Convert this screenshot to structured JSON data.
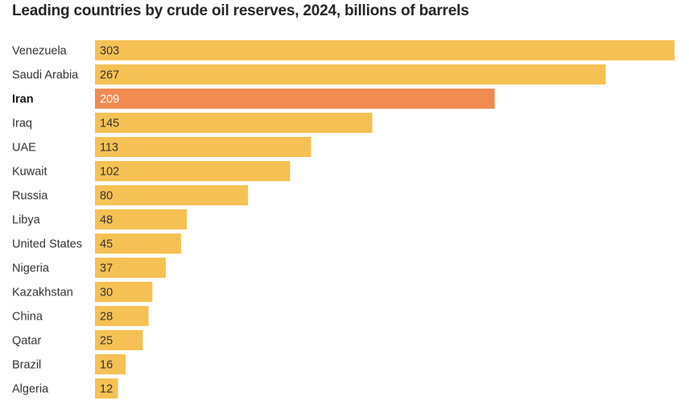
{
  "chart_data": {
    "type": "bar",
    "orientation": "horizontal",
    "title": "Leading countries by crude oil reserves, 2024, billions of barrels",
    "xlabel": "",
    "ylabel": "",
    "categories": [
      "Venezuela",
      "Saudi Arabia",
      "Iran",
      "Iraq",
      "UAE",
      "Kuwait",
      "Russia",
      "Libya",
      "United States",
      "Nigeria",
      "Kazakhstan",
      "China",
      "Qatar",
      "Brazil",
      "Algeria"
    ],
    "values": [
      303,
      267,
      209,
      145,
      113,
      102,
      80,
      48,
      45,
      37,
      30,
      28,
      25,
      16,
      12
    ],
    "highlight": "Iran",
    "xlim": [
      0,
      303
    ],
    "grid": false,
    "colors": {
      "default": "#F6C154",
      "highlight": "#F08B52"
    }
  }
}
